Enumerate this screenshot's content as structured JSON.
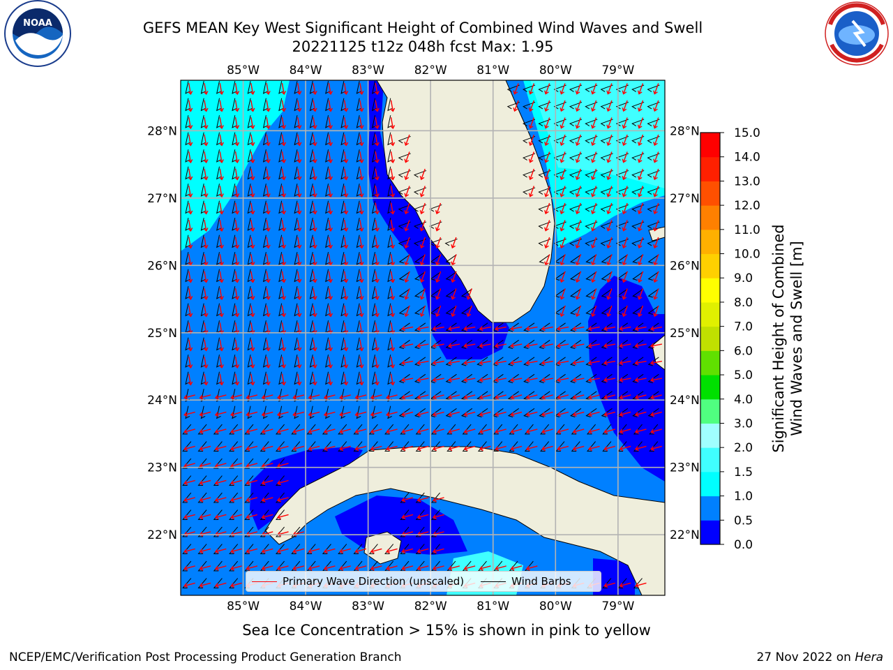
{
  "header": {
    "title_line1": "GEFS MEAN Key West Significant Height of Combined Wind Waves and Swell",
    "title_line2": "20221125 t12z 048h fcst   Max: 1.95"
  },
  "logos": {
    "left": {
      "name": "noaa-logo",
      "text": "NOAA",
      "ring_text": "NATIONAL OCEANIC AND ATMOSPHERIC ADMINISTRATION · U.S. DEPARTMENT OF COMMERCE"
    },
    "right": {
      "name": "nws-logo",
      "ring_text": "NATIONAL WEATHER SERVICE"
    }
  },
  "map": {
    "lon_labels": [
      "85°W",
      "84°W",
      "83°W",
      "82°W",
      "81°W",
      "80°W",
      "79°W"
    ],
    "lat_labels": [
      "28°N",
      "27°N",
      "26°N",
      "25°N",
      "24°N",
      "23°N",
      "22°N"
    ],
    "extent": {
      "lon_min": -86.0,
      "lon_max": -78.25,
      "lat_min": 21.1,
      "lat_max": 28.75
    },
    "colors": {
      "land": "#efeedc",
      "coast": "#000000",
      "grid": "#b3b3b3",
      "barb": "#000000",
      "wave_arrow": "#ff0000"
    }
  },
  "legend": {
    "items": [
      {
        "label": "Primary Wave Direction (unscaled)",
        "color": "#ff0000"
      },
      {
        "label": "Wind Barbs",
        "color": "#000000"
      }
    ]
  },
  "colorbar": {
    "label_line1": "Significant Height of Combined",
    "label_line2": "Wind Waves and Swell [m]",
    "ticks": [
      "0.0",
      "0.5",
      "1.0",
      "1.5",
      "2.0",
      "3.0",
      "4.0",
      "5.0",
      "6.0",
      "7.0",
      "8.0",
      "9.0",
      "10.0",
      "11.0",
      "12.0",
      "13.0",
      "14.0",
      "15.0"
    ],
    "colors": [
      "#0000ff",
      "#0080ff",
      "#00ffff",
      "#40ffff",
      "#a0ffff",
      "#50ff80",
      "#00e000",
      "#60e000",
      "#c0e000",
      "#e0f000",
      "#ffff00",
      "#ffd000",
      "#ffb000",
      "#ff8000",
      "#ff5000",
      "#ff2000",
      "#ff0000"
    ]
  },
  "note": "Sea Ice Concentration > 15% is shown in pink to yellow",
  "footer": {
    "left": "NCEP/EMC/Verification Post Processing Product Generation Branch",
    "right_date": "27 Nov 2022 on ",
    "right_host": "Hera"
  }
}
